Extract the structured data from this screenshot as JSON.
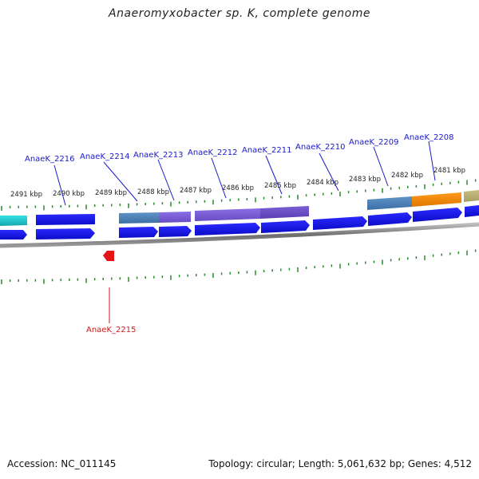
{
  "title": "Anaeromyxobacter sp. K, complete genome",
  "footer": {
    "accession": "Accession: NC_011145",
    "summary": "Topology: circular; Length: 5,061,632 bp; Genes: 4,512"
  },
  "colors": {
    "forward_gene": "#1414e6",
    "reverse_gene": "#e61414",
    "label_forward": "#1a1acc",
    "label_reverse": "#cc1a1a",
    "tick": "#2a8a2a",
    "backbone": "#888888"
  },
  "scale_labels": [
    "2491 kbp",
    "2490 kbp",
    "2489 kbp",
    "2488 kbp",
    "2487 kbp",
    "2486 kbp",
    "2485 kbp",
    "2484 kbp",
    "2483 kbp",
    "2482 kbp",
    "2481 kbp"
  ],
  "forward_gene_labels": [
    "AnaeK_2216",
    "AnaeK_2214",
    "AnaeK_2213",
    "AnaeK_2212",
    "AnaeK_2211",
    "AnaeK_2210",
    "AnaeK_2209",
    "AnaeK_2208"
  ],
  "reverse_gene_labels": [
    "AnaeK_2215"
  ]
}
